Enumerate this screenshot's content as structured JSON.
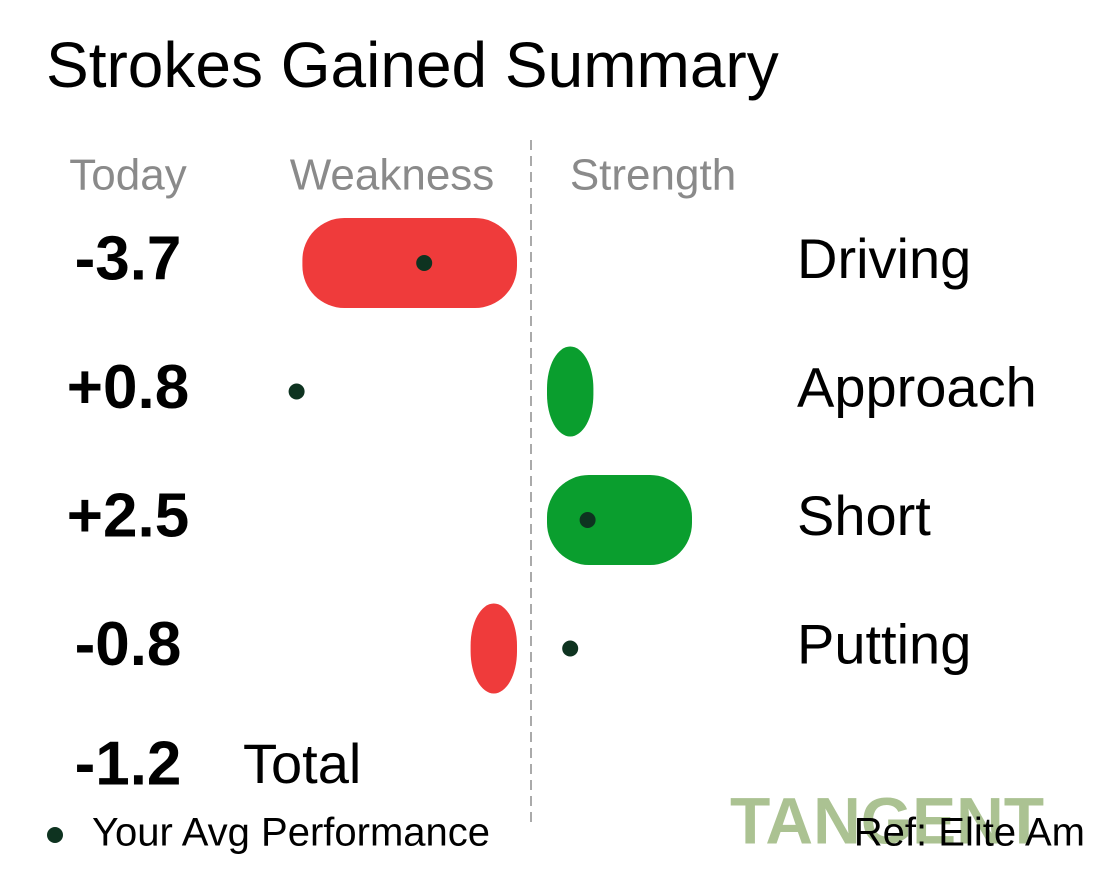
{
  "chart_data": {
    "type": "diverging_bar",
    "title": "Strokes Gained Summary",
    "today_label": "Today",
    "weakness_label": "Weakness",
    "strength_label": "Strength",
    "categories": [
      "Driving",
      "Approach",
      "Short",
      "Putting"
    ],
    "series": [
      {
        "name": "Today",
        "values": [
          -3.7,
          0.8,
          2.5,
          -0.8
        ],
        "value_labels": [
          "-3.7",
          "+0.8",
          "+2.5",
          "-0.8"
        ],
        "negative_color": "#ef3b3b",
        "positive_color": "#0a9e2e"
      },
      {
        "name": "Your Avg Performance",
        "color": "#0e3320",
        "values": [
          -1.6,
          -3.8,
          0.7,
          0.4
        ]
      }
    ],
    "total_label": "Total",
    "total": -1.2,
    "total_value_label": "-1.2",
    "reference": "Ref: Elite Am",
    "watermark": "TANGENT"
  }
}
